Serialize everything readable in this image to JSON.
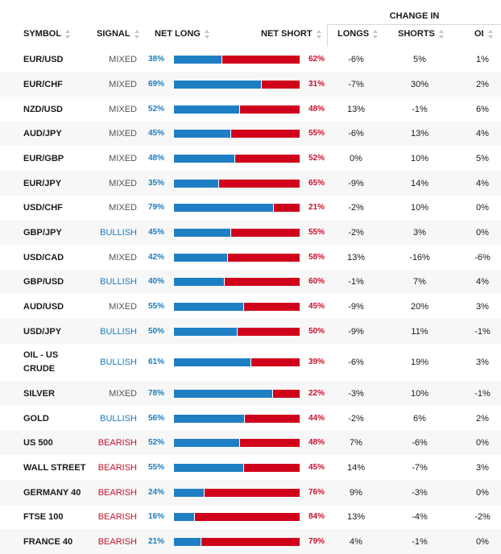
{
  "header": {
    "symbol": "SYMBOL",
    "signal": "SIGNAL",
    "net_long": "NET LONG",
    "net_short": "NET SHORT",
    "change_in": "CHANGE IN",
    "longs": "LONGS",
    "shorts": "SHORTS",
    "oi": "OI"
  },
  "colors": {
    "long": "#1f7fc4",
    "short": "#d0021b",
    "bullish": "#1a7cbf",
    "bearish": "#c8102e",
    "mixed": "#555555"
  },
  "rows": [
    {
      "symbol": "EUR/USD",
      "signal": "MIXED",
      "net_long": "38%",
      "net_short": "62%",
      "long_pct": 38,
      "longs": "-6%",
      "shorts": "5%",
      "oi": "1%"
    },
    {
      "symbol": "EUR/CHF",
      "signal": "MIXED",
      "net_long": "69%",
      "net_short": "31%",
      "long_pct": 69,
      "longs": "-7%",
      "shorts": "30%",
      "oi": "2%"
    },
    {
      "symbol": "NZD/USD",
      "signal": "MIXED",
      "net_long": "52%",
      "net_short": "48%",
      "long_pct": 52,
      "longs": "13%",
      "shorts": "-1%",
      "oi": "6%"
    },
    {
      "symbol": "AUD/JPY",
      "signal": "MIXED",
      "net_long": "45%",
      "net_short": "55%",
      "long_pct": 45,
      "longs": "-6%",
      "shorts": "13%",
      "oi": "4%"
    },
    {
      "symbol": "EUR/GBP",
      "signal": "MIXED",
      "net_long": "48%",
      "net_short": "52%",
      "long_pct": 48,
      "longs": "0%",
      "shorts": "10%",
      "oi": "5%"
    },
    {
      "symbol": "EUR/JPY",
      "signal": "MIXED",
      "net_long": "35%",
      "net_short": "65%",
      "long_pct": 35,
      "longs": "-9%",
      "shorts": "14%",
      "oi": "4%"
    },
    {
      "symbol": "USD/CHF",
      "signal": "MIXED",
      "net_long": "79%",
      "net_short": "21%",
      "long_pct": 79,
      "longs": "-2%",
      "shorts": "10%",
      "oi": "0%"
    },
    {
      "symbol": "GBP/JPY",
      "signal": "BULLISH",
      "net_long": "45%",
      "net_short": "55%",
      "long_pct": 45,
      "longs": "-2%",
      "shorts": "3%",
      "oi": "0%"
    },
    {
      "symbol": "USD/CAD",
      "signal": "MIXED",
      "net_long": "42%",
      "net_short": "58%",
      "long_pct": 42,
      "longs": "13%",
      "shorts": "-16%",
      "oi": "-6%"
    },
    {
      "symbol": "GBP/USD",
      "signal": "BULLISH",
      "net_long": "40%",
      "net_short": "60%",
      "long_pct": 40,
      "longs": "-1%",
      "shorts": "7%",
      "oi": "4%"
    },
    {
      "symbol": "AUD/USD",
      "signal": "MIXED",
      "net_long": "55%",
      "net_short": "45%",
      "long_pct": 55,
      "longs": "-9%",
      "shorts": "20%",
      "oi": "3%"
    },
    {
      "symbol": "USD/JPY",
      "signal": "BULLISH",
      "net_long": "50%",
      "net_short": "50%",
      "long_pct": 50,
      "longs": "-9%",
      "shorts": "11%",
      "oi": "-1%"
    },
    {
      "symbol": "OIL - US CRUDE",
      "signal": "BULLISH",
      "net_long": "61%",
      "net_short": "39%",
      "long_pct": 61,
      "longs": "-6%",
      "shorts": "19%",
      "oi": "3%"
    },
    {
      "symbol": "SILVER",
      "signal": "MIXED",
      "net_long": "78%",
      "net_short": "22%",
      "long_pct": 78,
      "longs": "-3%",
      "shorts": "10%",
      "oi": "-1%"
    },
    {
      "symbol": "GOLD",
      "signal": "BULLISH",
      "net_long": "56%",
      "net_short": "44%",
      "long_pct": 56,
      "longs": "-2%",
      "shorts": "6%",
      "oi": "2%"
    },
    {
      "symbol": "US 500",
      "signal": "BEARISH",
      "net_long": "52%",
      "net_short": "48%",
      "long_pct": 52,
      "longs": "7%",
      "shorts": "-6%",
      "oi": "0%"
    },
    {
      "symbol": "WALL STREET",
      "signal": "BEARISH",
      "net_long": "55%",
      "net_short": "45%",
      "long_pct": 55,
      "longs": "14%",
      "shorts": "-7%",
      "oi": "3%"
    },
    {
      "symbol": "GERMANY 40",
      "signal": "BEARISH",
      "net_long": "24%",
      "net_short": "76%",
      "long_pct": 24,
      "longs": "9%",
      "shorts": "-3%",
      "oi": "0%"
    },
    {
      "symbol": "FTSE 100",
      "signal": "BEARISH",
      "net_long": "16%",
      "net_short": "84%",
      "long_pct": 16,
      "longs": "13%",
      "shorts": "-4%",
      "oi": "-2%"
    },
    {
      "symbol": "FRANCE 40",
      "signal": "BEARISH",
      "net_long": "21%",
      "net_short": "79%",
      "long_pct": 21,
      "longs": "4%",
      "shorts": "-1%",
      "oi": "0%"
    }
  ]
}
